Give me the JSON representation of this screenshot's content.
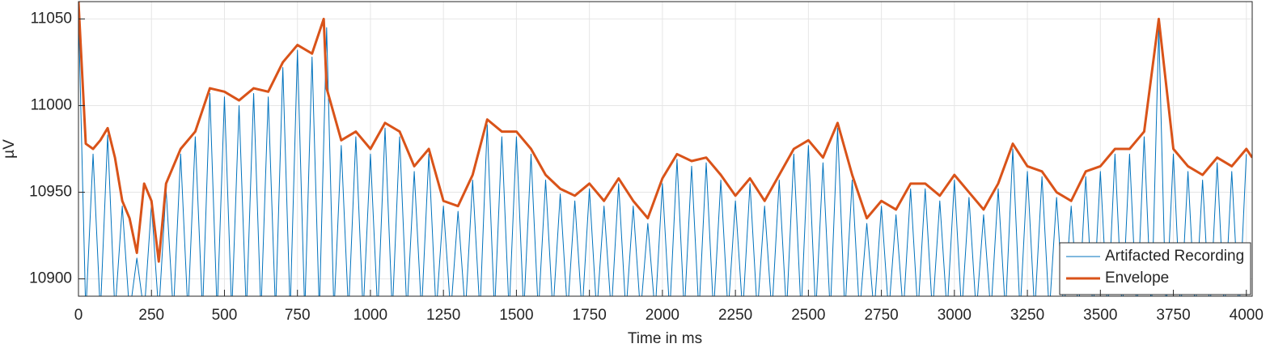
{
  "chart_data": {
    "type": "line",
    "xlabel": "Time in ms",
    "ylabel": "µV",
    "xlim": [
      0,
      4020
    ],
    "ylim": [
      10890,
      11060
    ],
    "xticks": [
      0,
      250,
      500,
      750,
      1000,
      1250,
      1500,
      1750,
      2000,
      2250,
      2500,
      2750,
      3000,
      3250,
      3500,
      3750,
      4000
    ],
    "yticks": [
      10900,
      10950,
      11000,
      11050
    ],
    "grid": true,
    "legend": "lower right",
    "series": [
      {
        "name": "Artifacted Recording",
        "color": "#0072BD",
        "width": 1,
        "x": [
          0,
          25,
          50,
          75,
          100,
          125,
          150,
          175,
          200,
          225,
          250,
          275,
          300,
          325,
          350,
          375,
          400,
          425,
          450,
          475,
          500,
          525,
          550,
          575,
          600,
          625,
          650,
          675,
          700,
          725,
          750,
          775,
          800,
          825,
          850,
          875,
          900,
          925,
          950,
          975,
          1000,
          1025,
          1050,
          1075,
          1100,
          1125,
          1150,
          1175,
          1200,
          1225,
          1250,
          1275,
          1300,
          1325,
          1350,
          1375,
          1400,
          1425,
          1450,
          1475,
          1500,
          1525,
          1550,
          1575,
          1600,
          1625,
          1650,
          1675,
          1700,
          1725,
          1750,
          1775,
          1800,
          1825,
          1850,
          1875,
          1900,
          1925,
          1950,
          1975,
          2000,
          2025,
          2050,
          2075,
          2100,
          2125,
          2150,
          2175,
          2200,
          2225,
          2250,
          2275,
          2300,
          2325,
          2350,
          2375,
          2400,
          2425,
          2450,
          2475,
          2500,
          2525,
          2550,
          2575,
          2600,
          2625,
          2650,
          2675,
          2700,
          2725,
          2750,
          2775,
          2800,
          2825,
          2850,
          2875,
          2900,
          2925,
          2950,
          2975,
          3000,
          3025,
          3050,
          3075,
          3100,
          3125,
          3150,
          3175,
          3200,
          3225,
          3250,
          3275,
          3300,
          3325,
          3350,
          3375,
          3400,
          3425,
          3450,
          3475,
          3500,
          3525,
          3550,
          3575,
          3600,
          3625,
          3650,
          3675,
          3700,
          3725,
          3750,
          3775,
          3800,
          3825,
          3850,
          3875,
          3900,
          3925,
          3950,
          3975,
          4000
        ],
        "values": [
          11055,
          10880,
          10972,
          10880,
          10983,
          10880,
          10942,
          10880,
          10912,
          10880,
          10943,
          10880,
          10952,
          10880,
          10972,
          10880,
          10982,
          10880,
          11007,
          10880,
          11005,
          10880,
          11000,
          10880,
          11007,
          10880,
          11005,
          10880,
          11022,
          10880,
          11032,
          10880,
          11028,
          10880,
          11045,
          10880,
          10977,
          10880,
          10982,
          10880,
          10972,
          10880,
          10987,
          10880,
          10982,
          10880,
          10962,
          10880,
          10972,
          10880,
          10942,
          10880,
          10939,
          10880,
          10957,
          10880,
          10989,
          10880,
          10982,
          10880,
          10982,
          10880,
          10972,
          10880,
          10957,
          10880,
          10949,
          10880,
          10945,
          10880,
          10952,
          10880,
          10942,
          10880,
          10955,
          10880,
          10942,
          10880,
          10932,
          10880,
          10955,
          10880,
          10969,
          10880,
          10965,
          10880,
          10967,
          10880,
          10957,
          10880,
          10945,
          10880,
          10955,
          10880,
          10942,
          10880,
          10957,
          10880,
          10972,
          10880,
          10977,
          10880,
          10967,
          10880,
          10987,
          10880,
          10957,
          10880,
          10932,
          10880,
          10942,
          10880,
          10937,
          10880,
          10952,
          10880,
          10952,
          10880,
          10945,
          10880,
          10957,
          10880,
          10947,
          10880,
          10937,
          10880,
          10952,
          10880,
          10975,
          10880,
          10962,
          10880,
          10959,
          10880,
          10947,
          10880,
          10942,
          10880,
          10959,
          10880,
          10962,
          10880,
          10972,
          10880,
          10972,
          10880,
          10982,
          10880,
          11045,
          10880,
          10972,
          10880,
          10962,
          10880,
          10957,
          10880,
          10967,
          10880,
          10962,
          10880,
          10972
        ]
      },
      {
        "name": "Envelope",
        "color": "#D95319",
        "width": 3,
        "x": [
          0,
          25,
          50,
          75,
          100,
          125,
          150,
          175,
          200,
          225,
          250,
          275,
          300,
          350,
          400,
          450,
          500,
          550,
          600,
          650,
          700,
          750,
          800,
          840,
          850,
          900,
          950,
          1000,
          1050,
          1100,
          1150,
          1200,
          1250,
          1300,
          1350,
          1400,
          1450,
          1500,
          1550,
          1600,
          1650,
          1700,
          1750,
          1800,
          1850,
          1900,
          1950,
          2000,
          2050,
          2100,
          2150,
          2200,
          2250,
          2300,
          2350,
          2400,
          2450,
          2500,
          2550,
          2600,
          2650,
          2700,
          2750,
          2800,
          2850,
          2900,
          2950,
          3000,
          3050,
          3100,
          3150,
          3200,
          3250,
          3300,
          3350,
          3400,
          3450,
          3500,
          3550,
          3600,
          3650,
          3700,
          3750,
          3800,
          3850,
          3900,
          3950,
          4000,
          4020
        ],
        "values": [
          11060,
          10978,
          10975,
          10980,
          10987,
          10970,
          10945,
          10935,
          10915,
          10955,
          10945,
          10910,
          10955,
          10975,
          10985,
          11010,
          11008,
          11003,
          11010,
          11008,
          11025,
          11035,
          11030,
          11050,
          11010,
          10980,
          10985,
          10975,
          10990,
          10985,
          10965,
          10975,
          10945,
          10942,
          10960,
          10992,
          10985,
          10985,
          10975,
          10960,
          10952,
          10948,
          10955,
          10945,
          10958,
          10945,
          10935,
          10958,
          10972,
          10968,
          10970,
          10960,
          10948,
          10958,
          10945,
          10960,
          10975,
          10980,
          10970,
          10990,
          10960,
          10935,
          10945,
          10940,
          10955,
          10955,
          10948,
          10960,
          10950,
          10940,
          10955,
          10978,
          10965,
          10962,
          10950,
          10945,
          10962,
          10965,
          10975,
          10975,
          10985,
          11050,
          10975,
          10965,
          10960,
          10970,
          10965,
          10975,
          10970
        ]
      }
    ]
  }
}
